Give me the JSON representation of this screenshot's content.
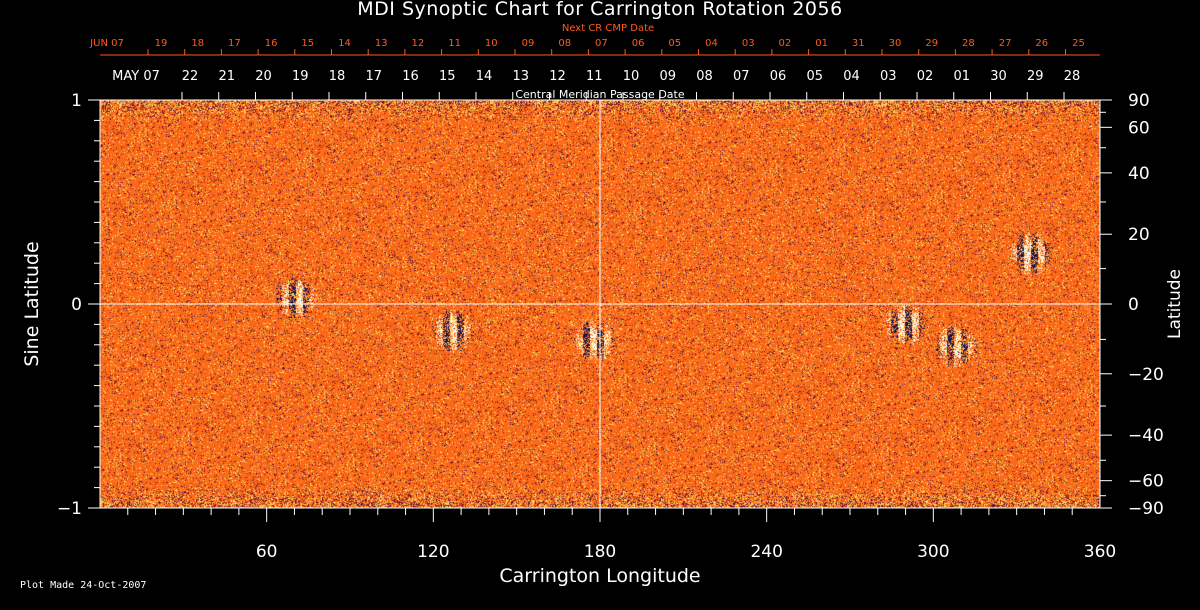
{
  "title": "MDI Synoptic Chart for Carrington Rotation 2056",
  "footer": "Plot Made 24-Oct-2007",
  "colors": {
    "background": "#000000",
    "axis": "#ffffff",
    "next_cr_text": "#ff5a1e",
    "map_base": "#ff5a14"
  },
  "chart_data": {
    "type": "heatmap",
    "title": "MDI Synoptic Chart for Carrington Rotation 2056",
    "xlabel": "Carrington Longitude",
    "ylabel": "Sine Latitude",
    "y2label": "Latitude",
    "xlim": [
      0,
      360
    ],
    "ylim": [
      -1,
      1
    ],
    "x_ticks": [
      60,
      120,
      180,
      240,
      300,
      360
    ],
    "y_ticks": [
      "1",
      "0",
      "−1"
    ],
    "latitude_ticks": [
      {
        "label": "90",
        "deg": 90
      },
      {
        "label": "60",
        "deg": 60
      },
      {
        "label": "40",
        "deg": 40
      },
      {
        "label": "20",
        "deg": 20
      },
      {
        "label": "0",
        "deg": 0
      },
      {
        "label": "−20",
        "deg": -20
      },
      {
        "label": "−40",
        "deg": -40
      },
      {
        "label": "−60",
        "deg": -60
      },
      {
        "label": "−90",
        "deg": -90
      }
    ],
    "next_cr_axis_label": "Next CR CMP Date",
    "next_cr_dates": [
      "JUN 07",
      "19",
      "18",
      "17",
      "16",
      "15",
      "14",
      "13",
      "12",
      "11",
      "10",
      "09",
      "08",
      "07",
      "06",
      "05",
      "04",
      "03",
      "02",
      "01",
      "31",
      "30",
      "29",
      "28",
      "27",
      "26",
      "25"
    ],
    "cmp_axis_label": "Central Meridian Passage Date",
    "cmp_dates": [
      "MAY 07",
      "22",
      "21",
      "20",
      "19",
      "18",
      "17",
      "16",
      "15",
      "14",
      "13",
      "12",
      "11",
      "10",
      "09",
      "08",
      "07",
      "06",
      "05",
      "04",
      "03",
      "02",
      "01",
      "30",
      "29",
      "28"
    ],
    "active_regions": [
      {
        "lon": 70,
        "sinlat": 0.03
      },
      {
        "lon": 127,
        "sinlat": -0.13
      },
      {
        "lon": 178,
        "sinlat": -0.18
      },
      {
        "lon": 290,
        "sinlat": -0.1
      },
      {
        "lon": 308,
        "sinlat": -0.2
      },
      {
        "lon": 335,
        "sinlat": 0.25
      }
    ],
    "grid": false,
    "reference_lines": {
      "x": 180,
      "y": 0
    }
  }
}
